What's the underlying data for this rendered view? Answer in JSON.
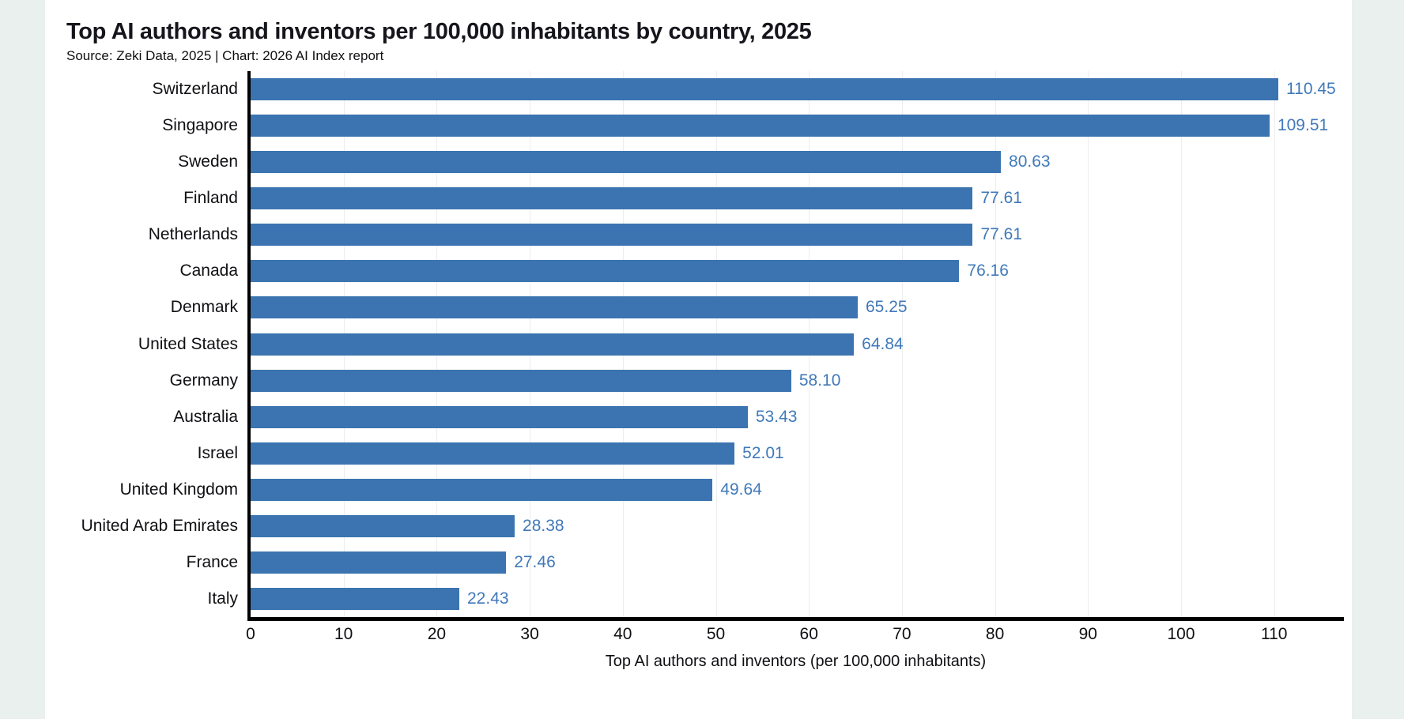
{
  "page": {
    "background_color": "#e9f0ee",
    "card_color": "#ffffff"
  },
  "header": {
    "title": "Top AI authors and inventors per 100,000 inhabitants by country, 2025",
    "source_line": "Source: Zeki Data, 2025 | Chart: 2026 AI Index report"
  },
  "chart_data": {
    "type": "bar",
    "orientation": "horizontal",
    "title": "Top AI authors and inventors per 100,000 inhabitants by country, 2025",
    "subtitle": "Source: Zeki Data, 2025 | Chart: 2026 AI Index report",
    "xlabel": "Top AI authors and inventors (per 100,000 inhabitants)",
    "ylabel": "",
    "categories": [
      "Switzerland",
      "Singapore",
      "Sweden",
      "Finland",
      "Netherlands",
      "Canada",
      "Denmark",
      "United States",
      "Germany",
      "Australia",
      "Israel",
      "United Kingdom",
      "United Arab Emirates",
      "France",
      "Italy"
    ],
    "values": [
      110.45,
      109.51,
      80.63,
      77.61,
      77.61,
      76.16,
      65.25,
      64.84,
      58.1,
      53.43,
      52.01,
      49.64,
      28.38,
      27.46,
      22.43
    ],
    "value_labels": [
      "110.45",
      "109.51",
      "80.63",
      "77.61",
      "77.61",
      "76.16",
      "65.25",
      "64.84",
      "58.10",
      "53.43",
      "52.01",
      "49.64",
      "28.38",
      "27.46",
      "22.43"
    ],
    "x_ticks": [
      0,
      10,
      20,
      30,
      40,
      50,
      60,
      70,
      80,
      90,
      100,
      110
    ],
    "xlim": [
      0,
      117.5
    ],
    "grid": true,
    "legend_position": "none",
    "bar_color": "#3b74b0",
    "value_label_color": "#4079ba",
    "gridline_color": "#ededed",
    "axis_color": "#000000"
  }
}
